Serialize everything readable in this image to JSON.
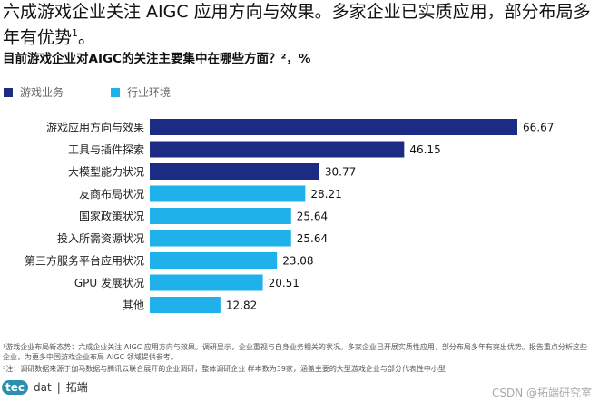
{
  "header": {
    "title": "六成游戏企业关注 AIGC 应用方向与效果。多家企业已实质应用，部分布局多年有优势",
    "title_sup": "1",
    "title_end": "。"
  },
  "chart_data": {
    "type": "bar",
    "orientation": "horizontal",
    "title": "目前游戏企业对AIGC的关注主要集中在哪些方面？²，%",
    "legend": [
      {
        "name": "游戏业务",
        "color": "#1c2b84"
      },
      {
        "name": "行业环境",
        "color": "#1fb2ea"
      }
    ],
    "legend_position": "top-left",
    "categories": [
      "游戏应用方向与效果",
      "工具与插件探索",
      "大模型能力状况",
      "友商布局状况",
      "国家政策状况",
      "投入所需资源状况",
      "第三方服务平台应用状况",
      "GPU 发展状况",
      "其他"
    ],
    "values": [
      66.67,
      46.15,
      30.77,
      28.21,
      25.64,
      25.64,
      23.08,
      20.51,
      12.82
    ],
    "series_index": [
      0,
      0,
      0,
      1,
      1,
      1,
      1,
      1,
      1
    ],
    "xlim": [
      0,
      70
    ],
    "grid": false
  },
  "footnotes": [
    "¹游戏企业布局新态势：六成企业关注 AIGC 应用方向与效果。调研显示，企业重视与自身业务相关的状况。多家企业已开展实质性应用，部分布局多年有突出优势。报告重点分析这些企业，为更多中国游戏企业布局 AIGC 领域提供参考。",
    "²注：调研数据来源于伽马数据与腾讯云联合展开的企业调研，整体调研企业 样本数为39家，涵盖主要的大型游戏企业与部分代表性中小型"
  ],
  "logo": {
    "mark": "tec",
    "text": "dat",
    "cn": "拓端"
  },
  "watermark": "CSDN @拓端研究室"
}
